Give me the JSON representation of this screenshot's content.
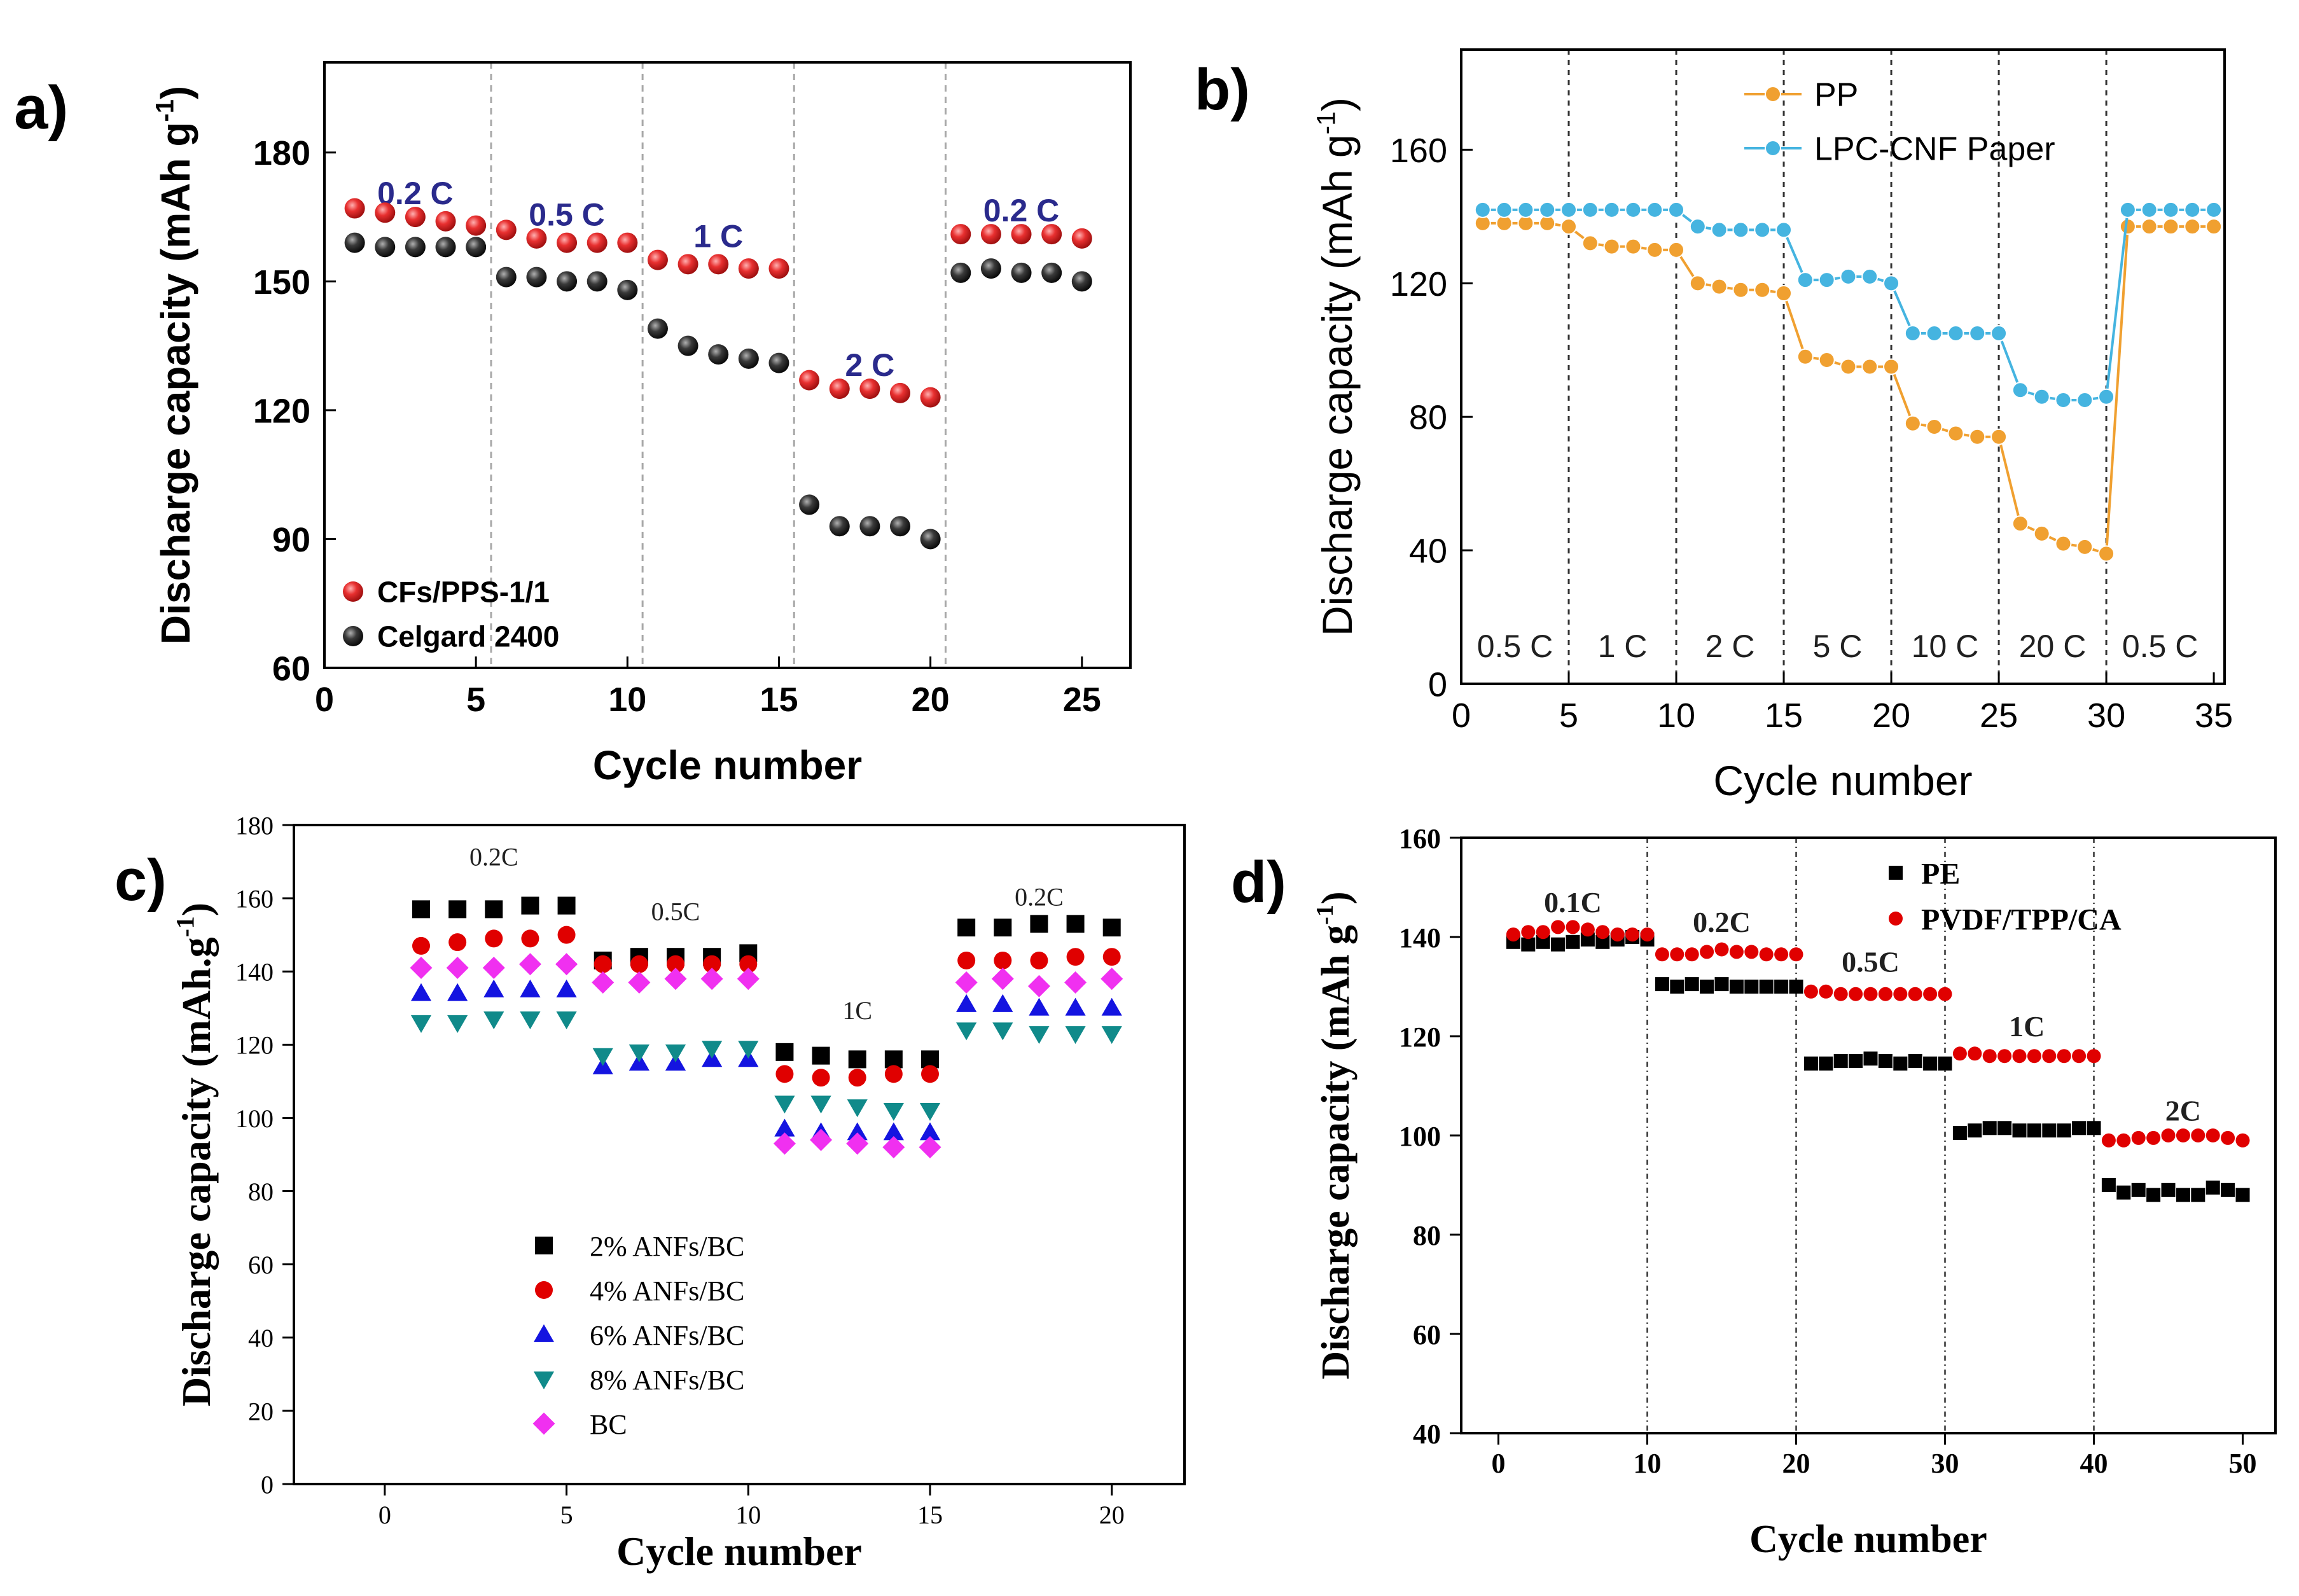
{
  "figure": {
    "panel_labels": [
      "a)",
      "b)",
      "c)",
      "d)"
    ]
  },
  "colors": {
    "red": "#e02828",
    "black": "#202020",
    "orange": "#f0a030",
    "cyan": "#45b4e0",
    "blue": "#1414e0",
    "teal": "#108a8a",
    "magenta": "#f030f0",
    "navy": "#2a2a8c",
    "pure_black": "#000000",
    "pure_red": "#e00000"
  },
  "chart_data": [
    {
      "id": "a",
      "type": "scatter",
      "style": "bold-sans",
      "xlabel": "Cycle number",
      "ylabel": "Discharge capacity (mAh g⁻¹)",
      "xlim": [
        0,
        26.6
      ],
      "ylim": [
        60,
        201
      ],
      "xticks": [
        0,
        5,
        10,
        15,
        20,
        25
      ],
      "yticks": [
        60,
        90,
        120,
        150,
        180
      ],
      "dividers": [
        5.5,
        10.5,
        15.5,
        20.5
      ],
      "rate_labels": [
        {
          "text": "0.2 C",
          "x": 3,
          "y": 168
        },
        {
          "text": "0.5 C",
          "x": 8,
          "y": 163
        },
        {
          "text": "1 C",
          "x": 13,
          "y": 158
        },
        {
          "text": "2 C",
          "x": 18,
          "y": 128
        },
        {
          "text": "0.2 C",
          "x": 23,
          "y": 164
        }
      ],
      "legend_position": "bottom-left",
      "series": [
        {
          "name": "CFs/PPS-1/1",
          "color": "red",
          "marker": "sphere",
          "x": [
            1,
            2,
            3,
            4,
            5,
            6,
            7,
            8,
            9,
            10,
            11,
            12,
            13,
            14,
            15,
            16,
            17,
            18,
            19,
            20,
            21,
            22,
            23,
            24,
            25
          ],
          "y": [
            167,
            166,
            165,
            164,
            163,
            162,
            160,
            159,
            159,
            159,
            155,
            154,
            154,
            153,
            153,
            127,
            125,
            125,
            124,
            123,
            161,
            161,
            161,
            161,
            160
          ]
        },
        {
          "name": "Celgard 2400",
          "color": "black",
          "marker": "sphere",
          "x": [
            1,
            2,
            3,
            4,
            5,
            6,
            7,
            8,
            9,
            10,
            11,
            12,
            13,
            14,
            15,
            16,
            17,
            18,
            19,
            20,
            21,
            22,
            23,
            24,
            25
          ],
          "y": [
            159,
            158,
            158,
            158,
            158,
            151,
            151,
            150,
            150,
            148,
            139,
            135,
            133,
            132,
            131,
            98,
            93,
            93,
            93,
            90,
            152,
            153,
            152,
            152,
            150
          ]
        }
      ]
    },
    {
      "id": "b",
      "type": "line",
      "style": "sans",
      "xlabel": "Cycle number",
      "ylabel": "Discharge capacity (mAh g⁻¹)",
      "xlim": [
        0,
        35.5
      ],
      "ylim": [
        0,
        190
      ],
      "xticks": [
        0,
        5,
        10,
        15,
        20,
        25,
        30,
        35
      ],
      "yticks": [
        0,
        40,
        80,
        120,
        160
      ],
      "dividers": [
        5,
        10,
        15,
        20,
        25,
        30
      ],
      "rate_labels": [
        {
          "text": "0.5 C",
          "x": 2.5,
          "y": 8
        },
        {
          "text": "1 C",
          "x": 7.5,
          "y": 8
        },
        {
          "text": "2 C",
          "x": 12.5,
          "y": 8
        },
        {
          "text": "5 C",
          "x": 17.5,
          "y": 8
        },
        {
          "text": "10 C",
          "x": 22.5,
          "y": 8
        },
        {
          "text": "20 C",
          "x": 27.5,
          "y": 8
        },
        {
          "text": "0.5 C",
          "x": 32.5,
          "y": 8
        }
      ],
      "legend_position": "top-right",
      "series": [
        {
          "name": "PP",
          "color": "orange",
          "marker": "circle",
          "x": [
            1,
            2,
            3,
            4,
            5,
            6,
            7,
            8,
            9,
            10,
            11,
            12,
            13,
            14,
            15,
            16,
            17,
            18,
            19,
            20,
            21,
            22,
            23,
            24,
            25,
            26,
            27,
            28,
            29,
            30,
            31,
            32,
            33,
            34,
            35
          ],
          "y": [
            138,
            138,
            138,
            138,
            137,
            132,
            131,
            131,
            130,
            130,
            120,
            119,
            118,
            118,
            117,
            98,
            97,
            95,
            95,
            95,
            78,
            77,
            75,
            74,
            74,
            48,
            45,
            42,
            41,
            39,
            137,
            137,
            137,
            137,
            137
          ]
        },
        {
          "name": "LPC-CNF Paper",
          "color": "cyan",
          "marker": "circle",
          "x": [
            1,
            2,
            3,
            4,
            5,
            6,
            7,
            8,
            9,
            10,
            11,
            12,
            13,
            14,
            15,
            16,
            17,
            18,
            19,
            20,
            21,
            22,
            23,
            24,
            25,
            26,
            27,
            28,
            29,
            30,
            31,
            32,
            33,
            34,
            35
          ],
          "y": [
            142,
            142,
            142,
            142,
            142,
            142,
            142,
            142,
            142,
            142,
            137,
            136,
            136,
            136,
            136,
            121,
            121,
            122,
            122,
            120,
            105,
            105,
            105,
            105,
            105,
            88,
            86,
            85,
            85,
            86,
            142,
            142,
            142,
            142,
            142
          ]
        }
      ]
    },
    {
      "id": "c",
      "type": "scatter",
      "style": "serif",
      "xlabel": "Cycle number",
      "ylabel": "Discharge capacity (mAh.g⁻¹)",
      "xlim": [
        -2.5,
        22
      ],
      "ylim": [
        0,
        180
      ],
      "xticks": [
        0,
        5,
        10,
        15,
        20
      ],
      "yticks": [
        0,
        20,
        40,
        60,
        80,
        100,
        120,
        140,
        160,
        180
      ],
      "rate_labels": [
        {
          "text": "0.2C",
          "x": 3,
          "y": 169
        },
        {
          "text": "0.5C",
          "x": 8,
          "y": 154
        },
        {
          "text": "1C",
          "x": 13,
          "y": 127
        },
        {
          "text": "0.2C",
          "x": 18,
          "y": 158
        }
      ],
      "legend_position": "bottom-left",
      "series": [
        {
          "name": "2% ANFs/BC",
          "color": "pure_black",
          "marker": "square",
          "x": [
            1,
            2,
            3,
            4,
            5,
            6,
            7,
            8,
            9,
            10,
            11,
            12,
            13,
            14,
            15,
            16,
            17,
            18,
            19,
            20
          ],
          "y": [
            157,
            157,
            157,
            158,
            158,
            143,
            144,
            144,
            144,
            145,
            118,
            117,
            116,
            116,
            116,
            152,
            152,
            153,
            153,
            152
          ]
        },
        {
          "name": "4% ANFs/BC",
          "color": "pure_red",
          "marker": "circle",
          "x": [
            1,
            2,
            3,
            4,
            5,
            6,
            7,
            8,
            9,
            10,
            11,
            12,
            13,
            14,
            15,
            16,
            17,
            18,
            19,
            20
          ],
          "y": [
            147,
            148,
            149,
            149,
            150,
            142,
            142,
            142,
            142,
            142,
            112,
            111,
            111,
            112,
            112,
            143,
            143,
            143,
            144,
            144
          ]
        },
        {
          "name": "6% ANFs/BC",
          "color": "blue",
          "marker": "triangle-up",
          "x": [
            1,
            2,
            3,
            4,
            5,
            6,
            7,
            8,
            9,
            10,
            11,
            12,
            13,
            14,
            15,
            16,
            17,
            18,
            19,
            20
          ],
          "y": [
            134,
            134,
            135,
            135,
            135,
            114,
            115,
            115,
            116,
            116,
            97,
            96,
            96,
            96,
            96,
            131,
            131,
            130,
            130,
            130
          ]
        },
        {
          "name": "8% ANFs/BC",
          "color": "teal",
          "marker": "triangle-down",
          "x": [
            1,
            2,
            3,
            4,
            5,
            6,
            7,
            8,
            9,
            10,
            11,
            12,
            13,
            14,
            15,
            16,
            17,
            18,
            19,
            20
          ],
          "y": [
            126,
            126,
            127,
            127,
            127,
            117,
            118,
            118,
            119,
            119,
            104,
            104,
            103,
            102,
            102,
            124,
            124,
            123,
            123,
            123
          ]
        },
        {
          "name": "BC",
          "color": "magenta",
          "marker": "diamond",
          "x": [
            1,
            2,
            3,
            4,
            5,
            6,
            7,
            8,
            9,
            10,
            11,
            12,
            13,
            14,
            15,
            16,
            17,
            18,
            19,
            20
          ],
          "y": [
            141,
            141,
            141,
            142,
            142,
            137,
            137,
            138,
            138,
            138,
            93,
            94,
            93,
            92,
            92,
            137,
            138,
            136,
            137,
            138
          ]
        }
      ]
    },
    {
      "id": "d",
      "type": "scatter",
      "style": "bold-serif",
      "xlabel": "Cycle number",
      "ylabel": "Discharge capacity (mAh g⁻¹)",
      "xlim": [
        -2.5,
        52.2
      ],
      "ylim": [
        40,
        160
      ],
      "xticks": [
        0,
        10,
        20,
        30,
        40,
        50
      ],
      "yticks": [
        40,
        60,
        80,
        100,
        120,
        140,
        160
      ],
      "dividers": [
        10,
        20,
        30,
        40
      ],
      "rate_labels": [
        {
          "text": "0.1C",
          "x": 5,
          "y": 145
        },
        {
          "text": "0.2C",
          "x": 15,
          "y": 141
        },
        {
          "text": "0.5C",
          "x": 25,
          "y": 133
        },
        {
          "text": "1C",
          "x": 35.5,
          "y": 120
        },
        {
          "text": "2C",
          "x": 46,
          "y": 103
        }
      ],
      "legend_position": "top-right",
      "series": [
        {
          "name": "PE",
          "color": "pure_black",
          "marker": "square",
          "x": [
            1,
            2,
            3,
            4,
            5,
            6,
            7,
            8,
            9,
            10,
            11,
            12,
            13,
            14,
            15,
            16,
            17,
            18,
            19,
            20,
            21,
            22,
            23,
            24,
            25,
            26,
            27,
            28,
            29,
            30,
            31,
            32,
            33,
            34,
            35,
            36,
            37,
            38,
            39,
            40,
            41,
            42,
            43,
            44,
            45,
            46,
            47,
            48,
            49,
            50
          ],
          "y": [
            139,
            138.5,
            139,
            138.5,
            139,
            139.5,
            139,
            139.5,
            140,
            139.5,
            130.5,
            130,
            130.5,
            130,
            130.5,
            130,
            130,
            130,
            130,
            130,
            114.5,
            114.5,
            115,
            115,
            115.5,
            115,
            114.5,
            115,
            114.5,
            114.5,
            100.5,
            101,
            101.5,
            101.5,
            101,
            101,
            101,
            101,
            101.5,
            101.5,
            90,
            88.5,
            89,
            88,
            89,
            88,
            88,
            89.5,
            89,
            88
          ]
        },
        {
          "name": "PVDF/TPP/CA",
          "color": "pure_red",
          "marker": "circle",
          "x": [
            1,
            2,
            3,
            4,
            5,
            6,
            7,
            8,
            9,
            10,
            11,
            12,
            13,
            14,
            15,
            16,
            17,
            18,
            19,
            20,
            21,
            22,
            23,
            24,
            25,
            26,
            27,
            28,
            29,
            30,
            31,
            32,
            33,
            34,
            35,
            36,
            37,
            38,
            39,
            40,
            41,
            42,
            43,
            44,
            45,
            46,
            47,
            48,
            49,
            50
          ],
          "y": [
            140.5,
            141,
            141,
            142,
            142,
            141.5,
            141,
            140.5,
            140.5,
            140.5,
            136.5,
            136.5,
            136.5,
            137,
            137.5,
            137,
            137,
            136.5,
            136.5,
            136.5,
            129,
            129,
            128.5,
            128.5,
            128.5,
            128.5,
            128.5,
            128.5,
            128.5,
            128.5,
            116.5,
            116.5,
            116,
            116,
            116,
            116,
            116,
            116,
            116,
            116,
            99,
            99,
            99.5,
            99.5,
            100,
            100,
            100,
            100,
            99.5,
            99
          ]
        }
      ]
    }
  ]
}
